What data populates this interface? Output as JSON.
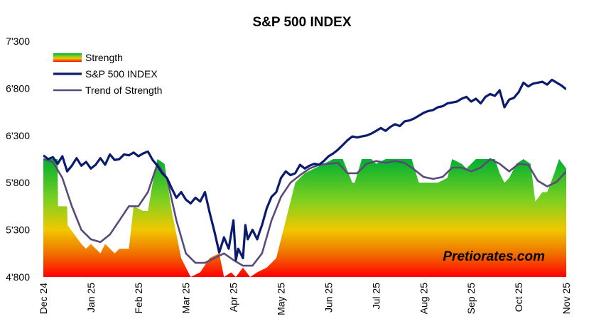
{
  "chart_data": {
    "type": "line",
    "title": "S&P 500 INDEX",
    "ylim": [
      4800,
      7300
    ],
    "yticks": [
      4800,
      5300,
      5800,
      6300,
      6800,
      7300
    ],
    "ytick_labels": [
      "4'800",
      "5'300",
      "5'800",
      "6'300",
      "6'800",
      "7'300"
    ],
    "x_labels": [
      "Dec 24",
      "Jan 25",
      "Feb 25",
      "Mar 25",
      "Apr 25",
      "May 25",
      "Jun 25",
      "Jul 25",
      "Aug 25",
      "Sep 25",
      "Oct 25",
      "Nov 25"
    ],
    "x_positions": [
      0,
      1,
      2,
      3,
      4,
      5,
      6,
      7,
      8,
      9,
      10,
      11
    ],
    "legend_position": "top-left",
    "watermark": "Pretiorates.com",
    "series": [
      {
        "name": "Strength",
        "style": "gradient-area",
        "colors": [
          "#00b030",
          "#7fd020",
          "#f0c800",
          "#f07000",
          "#ff0000"
        ],
        "x": [
          0,
          0.3,
          0.31,
          0.5,
          0.51,
          0.8,
          0.9,
          1.0,
          1.2,
          1.3,
          1.5,
          1.6,
          1.8,
          1.9,
          2.1,
          2.2,
          2.3,
          2.4,
          2.55,
          2.7,
          2.9,
          3.1,
          3.3,
          3.5,
          3.7,
          3.8,
          3.95,
          4.05,
          4.2,
          4.35,
          4.5,
          4.7,
          4.9,
          5.1,
          5.3,
          5.5,
          5.7,
          5.9,
          6.1,
          6.3,
          6.5,
          6.55,
          6.7,
          6.9,
          7.0,
          7.2,
          7.4,
          7.6,
          7.75,
          7.9,
          8.0,
          8.3,
          8.5,
          8.6,
          8.8,
          8.9,
          9.0,
          9.1,
          9.3,
          9.5,
          9.6,
          9.7,
          9.8,
          9.95,
          10.1,
          10.25,
          10.35,
          10.5,
          10.6,
          10.75,
          10.85,
          11.0
        ],
        "values": [
          6050,
          6050,
          5550,
          5550,
          5350,
          5150,
          5100,
          5150,
          5050,
          5150,
          5050,
          5100,
          5100,
          5550,
          5500,
          5500,
          5800,
          6050,
          6000,
          5500,
          5000,
          4800,
          4850,
          5000,
          5050,
          4800,
          4850,
          4800,
          4900,
          4800,
          4850,
          4900,
          5000,
          5400,
          5800,
          5900,
          5950,
          6000,
          6050,
          6050,
          5800,
          5800,
          6050,
          6050,
          6000,
          6050,
          6050,
          6050,
          6050,
          5800,
          5800,
          5800,
          5850,
          6050,
          6000,
          5950,
          6000,
          6050,
          6050,
          6050,
          5900,
          5800,
          5850,
          6000,
          6050,
          6000,
          5600,
          5700,
          5700,
          5900,
          6050,
          5950
        ]
      },
      {
        "name": "S&P 500 INDEX",
        "style": "line",
        "color": "#0a1a6e",
        "x": [
          0,
          0.1,
          0.2,
          0.3,
          0.4,
          0.5,
          0.6,
          0.7,
          0.8,
          0.9,
          1.0,
          1.1,
          1.2,
          1.3,
          1.4,
          1.5,
          1.6,
          1.7,
          1.8,
          1.9,
          2.0,
          2.1,
          2.2,
          2.3,
          2.4,
          2.5,
          2.6,
          2.7,
          2.8,
          2.9,
          3.0,
          3.1,
          3.2,
          3.3,
          3.4,
          3.5,
          3.6,
          3.7,
          3.8,
          3.9,
          4.0,
          4.05,
          4.1,
          4.2,
          4.25,
          4.3,
          4.4,
          4.5,
          4.55,
          4.6,
          4.7,
          4.8,
          4.9,
          5.0,
          5.1,
          5.2,
          5.3,
          5.4,
          5.5,
          5.6,
          5.7,
          5.8,
          5.9,
          6.0,
          6.1,
          6.2,
          6.3,
          6.4,
          6.5,
          6.6,
          6.7,
          6.8,
          6.9,
          7.0,
          7.1,
          7.2,
          7.3,
          7.4,
          7.5,
          7.6,
          7.7,
          7.8,
          7.9,
          8.0,
          8.1,
          8.2,
          8.3,
          8.4,
          8.5,
          8.6,
          8.7,
          8.8,
          8.9,
          9.0,
          9.1,
          9.2,
          9.3,
          9.4,
          9.5,
          9.6,
          9.7,
          9.8,
          9.9,
          10.0,
          10.1,
          10.2,
          10.3,
          10.4,
          10.5,
          10.6,
          10.7,
          10.8,
          10.9,
          11.0
        ],
        "values": [
          6090,
          6050,
          6070,
          6000,
          6080,
          5920,
          5980,
          6060,
          5980,
          6020,
          5950,
          5990,
          6060,
          5990,
          6100,
          6040,
          6050,
          6100,
          6090,
          6120,
          6080,
          6110,
          6130,
          6040,
          5980,
          5900,
          5850,
          5740,
          5640,
          5700,
          5620,
          5580,
          5640,
          5600,
          5700,
          5480,
          5280,
          5060,
          5220,
          5100,
          5400,
          4980,
          5100,
          5000,
          5350,
          5200,
          5300,
          5200,
          5280,
          5350,
          5530,
          5650,
          5700,
          5850,
          5920,
          5880,
          5900,
          5990,
          5950,
          5980,
          6000,
          5990,
          6030,
          6080,
          6110,
          6150,
          6200,
          6250,
          6290,
          6280,
          6290,
          6300,
          6320,
          6350,
          6380,
          6350,
          6390,
          6420,
          6400,
          6450,
          6460,
          6480,
          6510,
          6540,
          6560,
          6570,
          6600,
          6610,
          6640,
          6650,
          6660,
          6690,
          6710,
          6660,
          6690,
          6640,
          6710,
          6740,
          6720,
          6780,
          6600,
          6680,
          6700,
          6760,
          6860,
          6820,
          6850,
          6860,
          6870,
          6840,
          6890,
          6860,
          6830,
          6790
        ]
      },
      {
        "name": "Trend of Strength",
        "style": "line",
        "color": "#5a4a7a",
        "x": [
          0,
          0.2,
          0.4,
          0.6,
          0.8,
          1.0,
          1.2,
          1.4,
          1.6,
          1.8,
          2.0,
          2.2,
          2.4,
          2.6,
          2.8,
          3.0,
          3.2,
          3.4,
          3.6,
          3.8,
          4.0,
          4.2,
          4.4,
          4.6,
          4.8,
          5.0,
          5.2,
          5.4,
          5.6,
          5.8,
          6.0,
          6.2,
          6.4,
          6.6,
          6.8,
          7.0,
          7.2,
          7.4,
          7.6,
          7.8,
          8.0,
          8.2,
          8.4,
          8.6,
          8.8,
          9.0,
          9.2,
          9.4,
          9.6,
          9.8,
          10.0,
          10.2,
          10.4,
          10.6,
          10.8,
          11.0
        ],
        "values": [
          6050,
          6020,
          5850,
          5550,
          5300,
          5200,
          5170,
          5250,
          5400,
          5550,
          5550,
          5700,
          6000,
          5850,
          5400,
          5050,
          4950,
          4950,
          5000,
          5050,
          4980,
          4920,
          4920,
          5050,
          5400,
          5650,
          5800,
          5880,
          5950,
          5990,
          6000,
          6010,
          5900,
          5900,
          6000,
          6030,
          6010,
          6030,
          6010,
          5940,
          5860,
          5840,
          5860,
          5960,
          5960,
          5920,
          5960,
          6050,
          6000,
          5920,
          6000,
          5990,
          5820,
          5760,
          5810,
          5920
        ]
      }
    ]
  }
}
